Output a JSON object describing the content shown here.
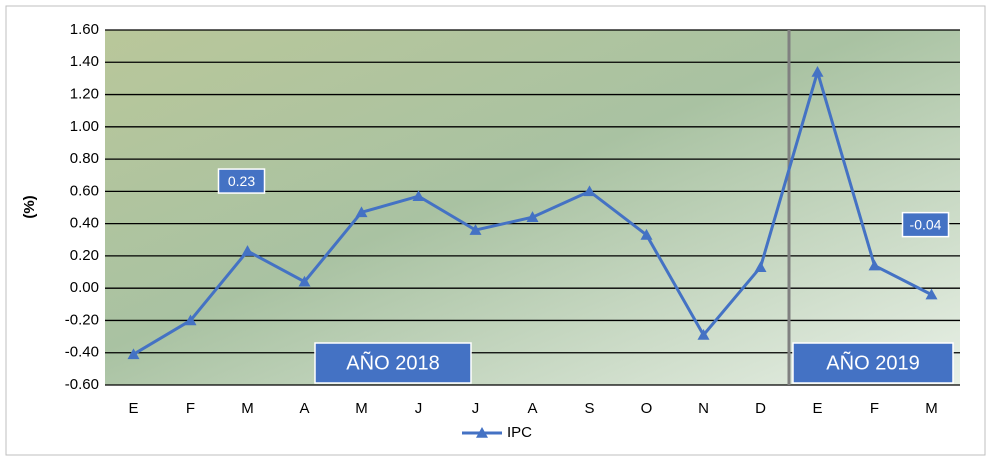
{
  "chart_data": {
    "type": "line",
    "y_label": "(%)",
    "categories": [
      "E",
      "F",
      "M",
      "A",
      "M",
      "J",
      "J",
      "A",
      "S",
      "O",
      "N",
      "D",
      "E",
      "F",
      "M"
    ],
    "series": [
      {
        "name": "IPC",
        "color": "#4472c4",
        "values": [
          -0.41,
          -0.2,
          0.23,
          0.04,
          0.47,
          0.57,
          0.36,
          0.44,
          0.6,
          0.33,
          -0.29,
          0.13,
          1.34,
          0.14,
          -0.04
        ],
        "value_labels": [
          null,
          null,
          "0.23",
          null,
          null,
          null,
          null,
          null,
          null,
          null,
          null,
          null,
          null,
          null,
          "-0.04"
        ]
      }
    ],
    "ylim": [
      -0.6,
      1.6
    ],
    "yticks": [
      {
        "value": -0.6,
        "label": "-0.60"
      },
      {
        "value": -0.4,
        "label": "-0.40"
      },
      {
        "value": -0.2,
        "label": "-0.20"
      },
      {
        "value": 0,
        "label": "0.00"
      },
      {
        "value": 0.2,
        "label": "0.20"
      },
      {
        "value": 0.4,
        "label": "0.40"
      },
      {
        "value": 0.6,
        "label": "0.60"
      },
      {
        "value": 0.8,
        "label": "0.80"
      },
      {
        "value": 1,
        "label": "1.00"
      },
      {
        "value": 1.2,
        "label": "1.20"
      },
      {
        "value": 1.4,
        "label": "1.40"
      },
      {
        "value": 1.6,
        "label": "1.60"
      }
    ],
    "grid": true,
    "legend": "bottom",
    "annotations": [
      "AÑO 2018",
      "AÑO 2019"
    ]
  }
}
